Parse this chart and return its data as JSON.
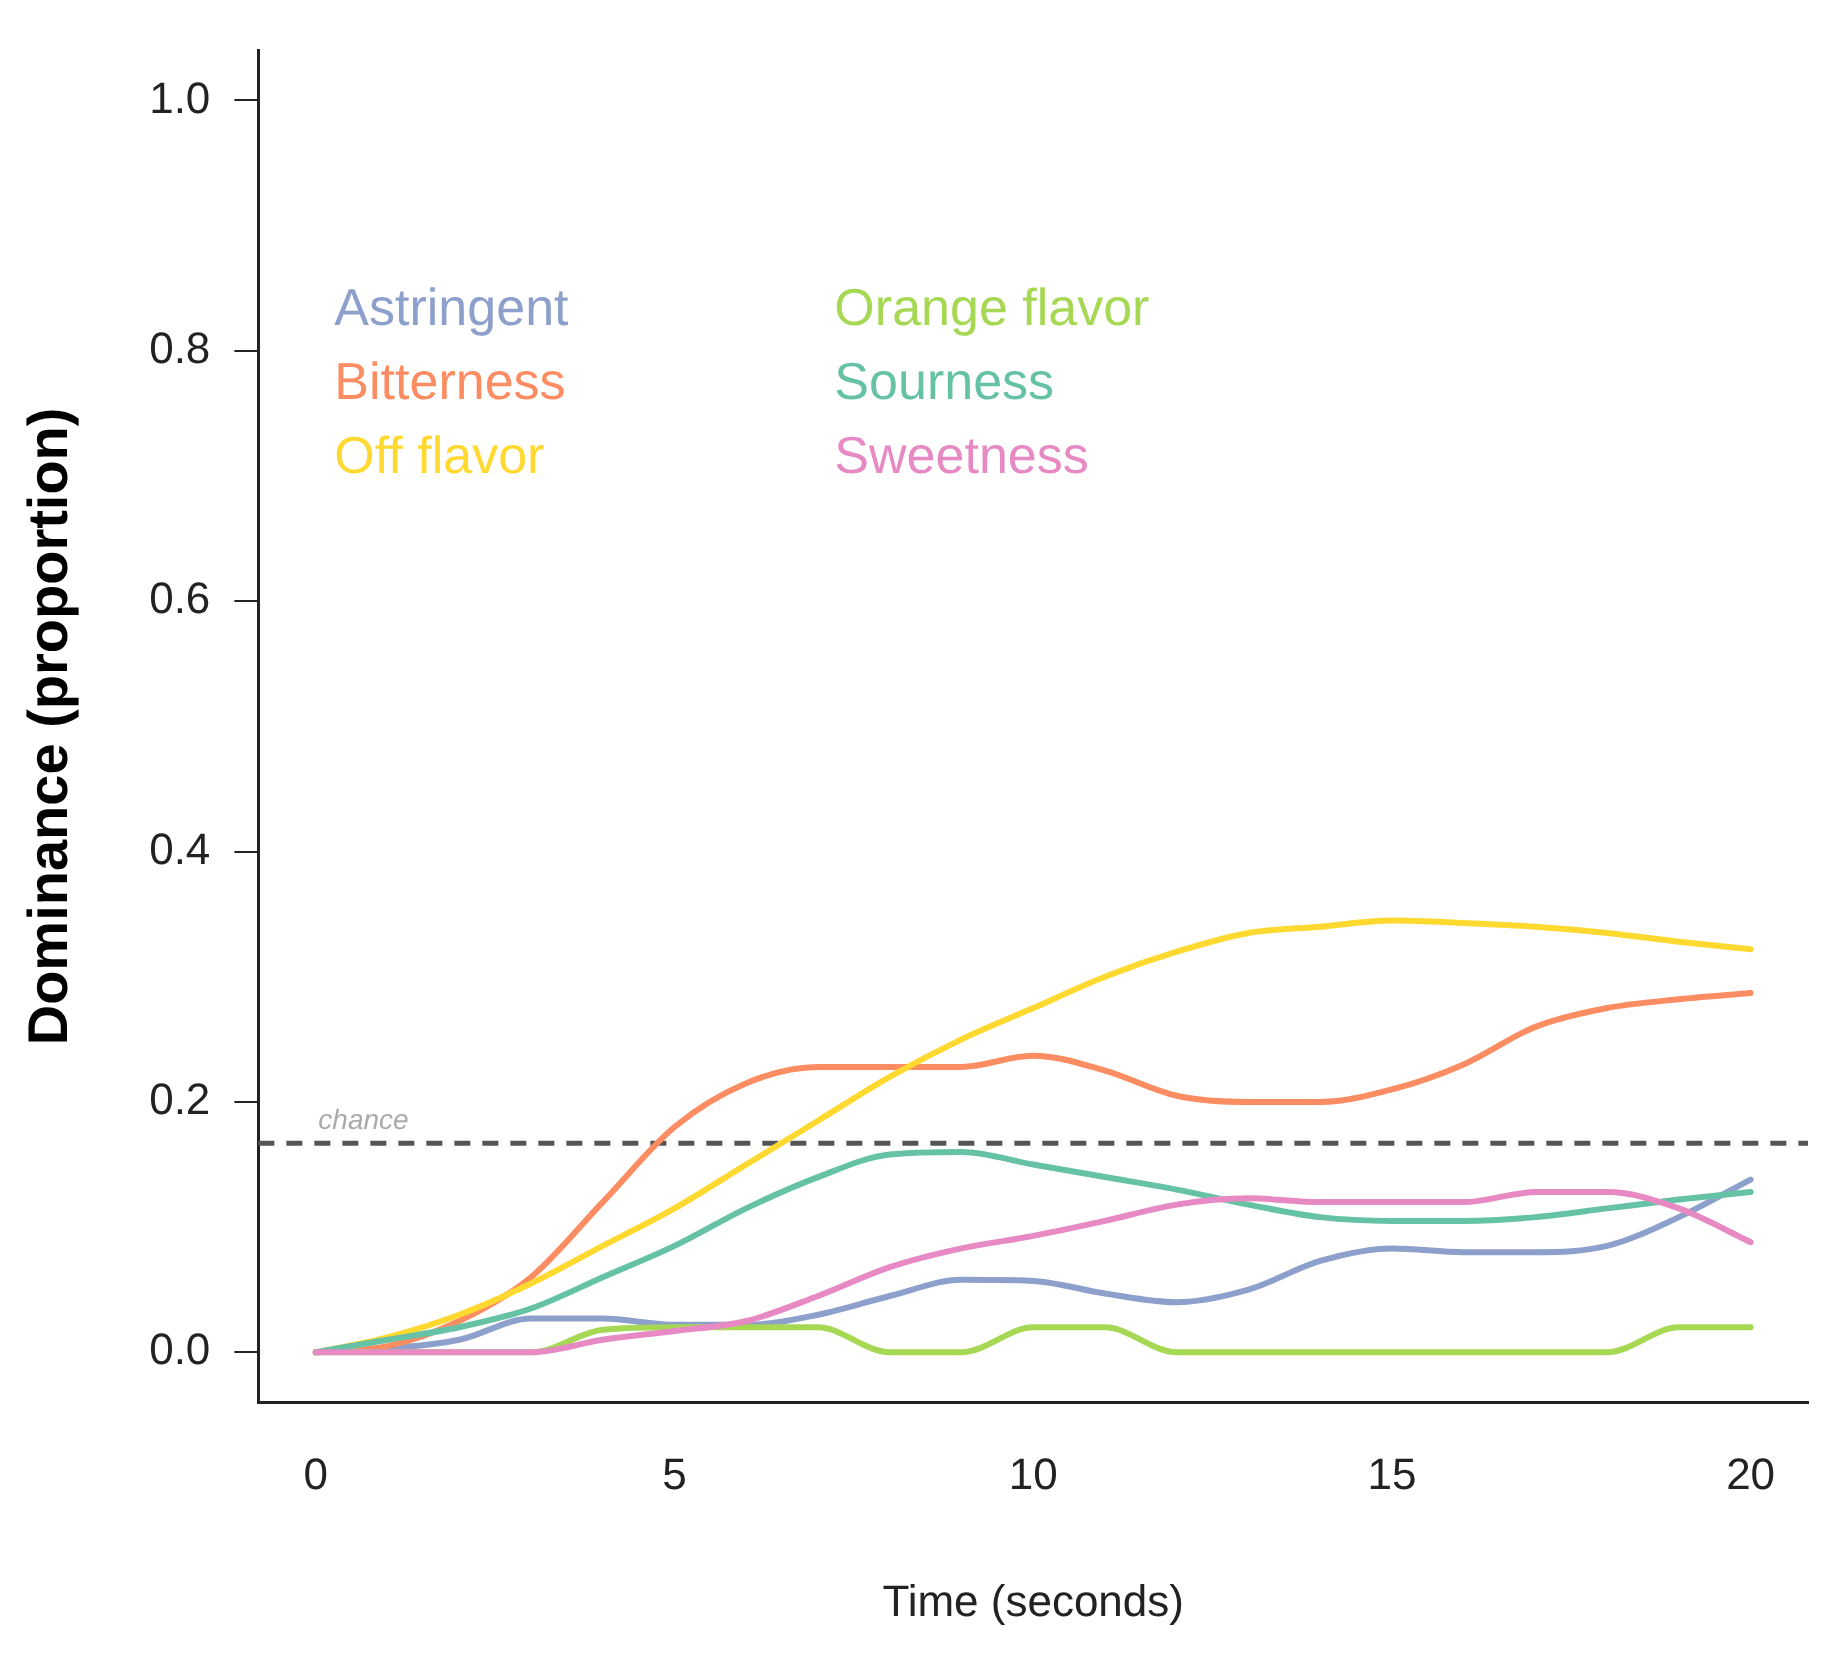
{
  "chart_data": {
    "type": "line",
    "xlabel": "Time (seconds)",
    "ylabel": "Dominance (proportion)",
    "x": [
      0,
      1,
      2,
      3,
      4,
      5,
      6,
      7,
      8,
      9,
      10,
      11,
      12,
      13,
      14,
      15,
      16,
      17,
      18,
      19,
      20
    ],
    "xlim": [
      -0.8,
      20.8
    ],
    "xticks": [
      0,
      5,
      10,
      15,
      20
    ],
    "ylim": [
      -0.04,
      1.04
    ],
    "yticks": [
      {
        "value": 0,
        "label": "0.0"
      },
      {
        "value": 0.2,
        "label": "0.2"
      },
      {
        "value": 0.4,
        "label": "0.4"
      },
      {
        "value": 0.6,
        "label": "0.6"
      },
      {
        "value": 0.8,
        "label": "0.8"
      },
      {
        "value": 1,
        "label": "1.0"
      }
    ],
    "grid": false,
    "legend": "top left",
    "marker": "none",
    "line_style": "solid",
    "ref_lines": [
      {
        "axis": "y",
        "value": 0.167,
        "label": "chance",
        "color": "#555555",
        "line_style": "dashed"
      }
    ],
    "series": [
      {
        "name": "Astringent",
        "color": "#8da0cb",
        "values": [
          0,
          0.003,
          0.01,
          0.027,
          0.027,
          0.022,
          0.022,
          0.03,
          0.045,
          0.058,
          0.057,
          0.047,
          0.04,
          0.05,
          0.073,
          0.083,
          0.08,
          0.08,
          0.085,
          0.108,
          0.138
        ]
      },
      {
        "name": "Bitterness",
        "color": "#fc8d62",
        "values": [
          0,
          0.005,
          0.025,
          0.06,
          0.12,
          0.18,
          0.215,
          0.228,
          0.228,
          0.228,
          0.237,
          0.225,
          0.205,
          0.2,
          0.2,
          0.21,
          0.23,
          0.26,
          0.275,
          0.282,
          0.287
        ]
      },
      {
        "name": "Off flavor",
        "color": "#ffd92f",
        "values": [
          0,
          0.012,
          0.03,
          0.055,
          0.085,
          0.115,
          0.15,
          0.185,
          0.22,
          0.25,
          0.275,
          0.3,
          0.32,
          0.335,
          0.34,
          0.345,
          0.343,
          0.34,
          0.335,
          0.328,
          0.322
        ]
      },
      {
        "name": "Orange flavor",
        "color": "#a6d854",
        "values": [
          0,
          0,
          0,
          0,
          0.018,
          0.02,
          0.02,
          0.02,
          0,
          0,
          0.02,
          0.02,
          0,
          0,
          0,
          0,
          0,
          0,
          0,
          0.02,
          0.02
        ]
      },
      {
        "name": "Sourness",
        "color": "#66c2a5",
        "values": [
          0,
          0.01,
          0.02,
          0.035,
          0.06,
          0.085,
          0.115,
          0.14,
          0.158,
          0.16,
          0.15,
          0.14,
          0.13,
          0.118,
          0.108,
          0.105,
          0.105,
          0.108,
          0.115,
          0.122,
          0.128
        ]
      },
      {
        "name": "Sweetness",
        "color": "#e78ac3",
        "values": [
          0,
          0,
          0,
          0,
          0.01,
          0.017,
          0.025,
          0.045,
          0.068,
          0.083,
          0.093,
          0.105,
          0.118,
          0.123,
          0.12,
          0.12,
          0.12,
          0.128,
          0.128,
          0.115,
          0.088
        ]
      }
    ]
  }
}
